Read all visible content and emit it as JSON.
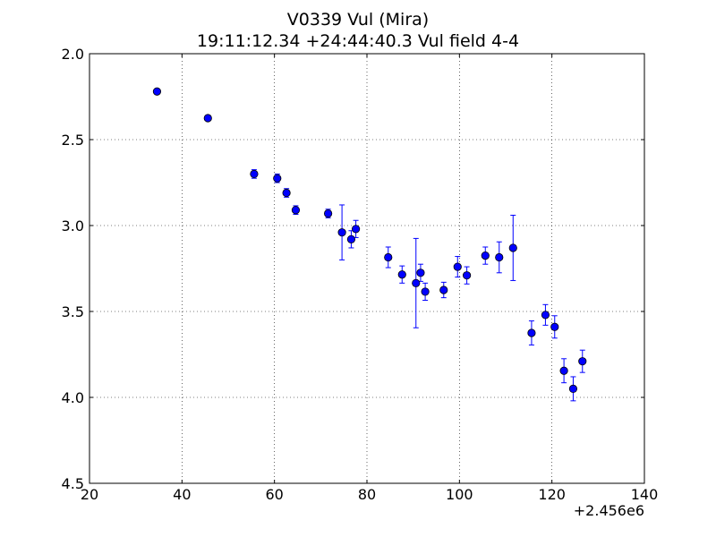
{
  "title": "V0339 Vul (Mira)",
  "subtitle": "19:11:12.34 +24:44:40.3 Vul field 4-4",
  "x_offset_label": "+2.456e6",
  "chart_data": {
    "type": "scatter",
    "title": "V0339 Vul (Mira)",
    "subtitle": "19:11:12.34 +24:44:40.3 Vul field 4-4",
    "xlabel": "",
    "ylabel": "",
    "x_offset_label": "+2.456e6",
    "xlim": [
      20,
      140
    ],
    "ylim": [
      2.0,
      4.5
    ],
    "y_inverted": true,
    "xticks": [
      "20",
      "40",
      "60",
      "80",
      "100",
      "120",
      "140"
    ],
    "yticks": [
      "2.0",
      "2.5",
      "3.0",
      "3.5",
      "4.0",
      "4.5"
    ],
    "grid": true,
    "marker_color": "#0000ff",
    "series": [
      {
        "points": [
          {
            "x": 34.6,
            "y": 2.22,
            "err": 0.01
          },
          {
            "x": 45.6,
            "y": 2.375,
            "err": 0.015
          },
          {
            "x": 55.6,
            "y": 2.7,
            "err": 0.025
          },
          {
            "x": 60.6,
            "y": 2.725,
            "err": 0.025
          },
          {
            "x": 62.6,
            "y": 2.81,
            "err": 0.025
          },
          {
            "x": 64.6,
            "y": 2.91,
            "err": 0.025
          },
          {
            "x": 71.6,
            "y": 2.93,
            "err": 0.025
          },
          {
            "x": 74.6,
            "y": 3.04,
            "err": 0.16
          },
          {
            "x": 76.6,
            "y": 3.08,
            "err": 0.05
          },
          {
            "x": 77.6,
            "y": 3.02,
            "err": 0.05
          },
          {
            "x": 84.6,
            "y": 3.185,
            "err": 0.06
          },
          {
            "x": 87.6,
            "y": 3.285,
            "err": 0.05
          },
          {
            "x": 90.6,
            "y": 3.335,
            "err": 0.26
          },
          {
            "x": 91.6,
            "y": 3.275,
            "err": 0.05
          },
          {
            "x": 92.6,
            "y": 3.385,
            "err": 0.05
          },
          {
            "x": 96.6,
            "y": 3.375,
            "err": 0.045
          },
          {
            "x": 99.6,
            "y": 3.24,
            "err": 0.06
          },
          {
            "x": 101.6,
            "y": 3.29,
            "err": 0.05
          },
          {
            "x": 105.6,
            "y": 3.175,
            "err": 0.05
          },
          {
            "x": 108.6,
            "y": 3.185,
            "err": 0.09
          },
          {
            "x": 111.6,
            "y": 3.13,
            "err": 0.19
          },
          {
            "x": 115.6,
            "y": 3.625,
            "err": 0.07
          },
          {
            "x": 118.6,
            "y": 3.52,
            "err": 0.06
          },
          {
            "x": 120.6,
            "y": 3.59,
            "err": 0.065
          },
          {
            "x": 122.6,
            "y": 3.845,
            "err": 0.07
          },
          {
            "x": 124.6,
            "y": 3.95,
            "err": 0.07
          },
          {
            "x": 126.6,
            "y": 3.79,
            "err": 0.065
          }
        ]
      }
    ]
  }
}
